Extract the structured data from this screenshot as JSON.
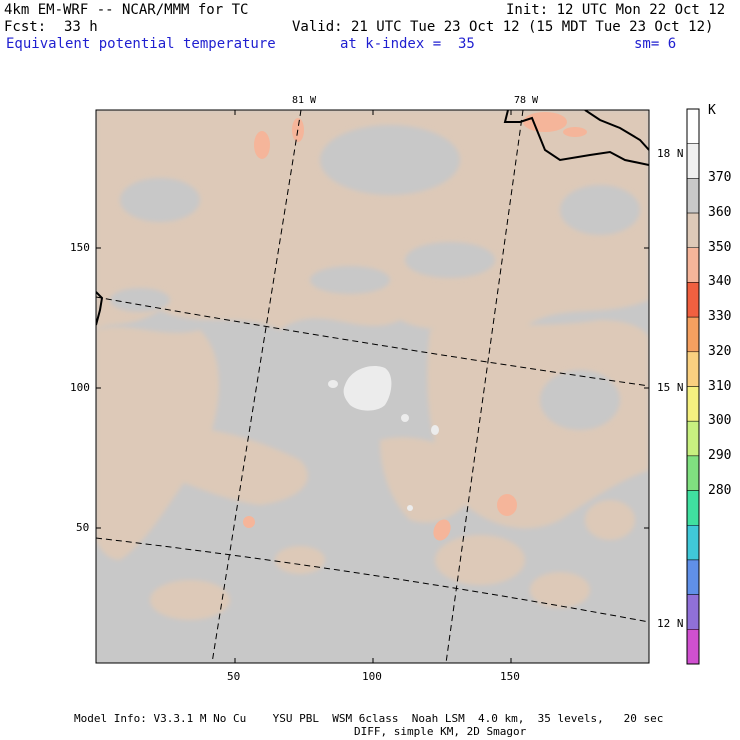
{
  "header": {
    "model_title": "4km EM-WRF -- NCAR/MMM for TC",
    "init": "Init: 12 UTC Mon 22 Oct 12",
    "fcst_label": "Fcst:",
    "fcst_value": "33 h",
    "valid": "Valid: 21 UTC Tue 23 Oct 12 (15 MDT Tue 23 Oct 12)",
    "field": "Equivalent potential temperature",
    "level": "at k-index =  35",
    "smooth": "sm= 6"
  },
  "map": {
    "x_ticks": [
      "50",
      "100",
      "150"
    ],
    "y_ticks": [
      "50",
      "100",
      "150"
    ],
    "lon_labels": [
      "81 W",
      "78 W"
    ],
    "lat_labels": [
      "18 N",
      "15 N",
      "12 N"
    ]
  },
  "colorbar": {
    "unit": "K",
    "labels": [
      "370",
      "360",
      "350",
      "340",
      "330",
      "320",
      "310",
      "300",
      "290",
      "280"
    ],
    "colors": [
      "#ffffff",
      "#f0f0f0",
      "#c8c8c8",
      "#ddc9b8",
      "#f5b59a",
      "#f06040",
      "#f5a060",
      "#fad080",
      "#f5f080",
      "#c8f080",
      "#80e080",
      "#40e0a0",
      "#40c8d8",
      "#6090e8",
      "#9070d8",
      "#d050d0"
    ]
  },
  "footer": {
    "line1": "Model Info: V3.3.1 M No Cu    YSU PBL  WSM 6class  Noah LSM  4.0 km,  35 levels,   20 sec",
    "line2": "DIFF, simple KM, 2D Smagor"
  }
}
